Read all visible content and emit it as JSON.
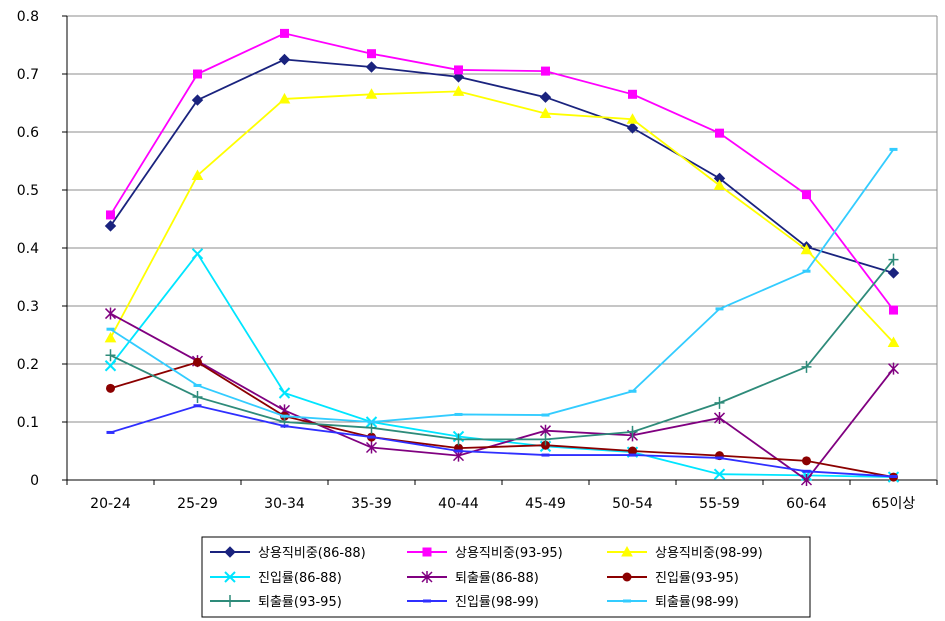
{
  "chart_data": {
    "type": "line",
    "title": "",
    "xlabel": "",
    "ylabel": "",
    "ylim": [
      0,
      0.8
    ],
    "yticks": [
      "0",
      "0.1",
      "0.2",
      "0.3",
      "0.4",
      "0.5",
      "0.6",
      "0.7",
      "0.8"
    ],
    "categories": [
      "20-24",
      "25-29",
      "30-34",
      "35-39",
      "40-44",
      "45-49",
      "50-54",
      "55-59",
      "60-64",
      "65이상"
    ],
    "grid": "horizontal",
    "legend_position": "bottom",
    "series": [
      {
        "name": "상용직비중(86-88)",
        "color": "#1a237e",
        "marker": "diamond",
        "values": [
          0.438,
          0.655,
          0.725,
          0.712,
          0.695,
          0.66,
          0.607,
          0.52,
          0.402,
          0.357
        ]
      },
      {
        "name": "상용직비중(93-95)",
        "color": "#ff00ff",
        "marker": "square",
        "values": [
          0.457,
          0.7,
          0.77,
          0.735,
          0.707,
          0.705,
          0.665,
          0.598,
          0.492,
          0.293
        ]
      },
      {
        "name": "상용직비중(98-99)",
        "color": "#ffff00",
        "marker": "triangle",
        "values": [
          0.245,
          0.525,
          0.657,
          0.665,
          0.67,
          0.632,
          0.622,
          0.508,
          0.397,
          0.237
        ]
      },
      {
        "name": "진입률(86-88)",
        "color": "#00e5ff",
        "marker": "x",
        "values": [
          0.197,
          0.39,
          0.15,
          0.1,
          0.075,
          0.058,
          0.048,
          0.01,
          0.008,
          0.005
        ]
      },
      {
        "name": "퇴출률(86-88)",
        "color": "#800080",
        "marker": "asterisk",
        "values": [
          0.287,
          0.205,
          0.12,
          0.056,
          0.042,
          0.085,
          0.077,
          0.107,
          0.0,
          0.192
        ]
      },
      {
        "name": "진입률(93-95)",
        "color": "#8b0000",
        "marker": "circle",
        "values": [
          0.158,
          0.203,
          0.11,
          0.074,
          0.055,
          0.06,
          0.05,
          0.042,
          0.033,
          0.005
        ]
      },
      {
        "name": "퇴출률(93-95)",
        "color": "#2e8b7a",
        "marker": "plus",
        "values": [
          0.215,
          0.143,
          0.1,
          0.09,
          0.07,
          0.07,
          0.083,
          0.133,
          0.195,
          0.38
        ]
      },
      {
        "name": "진입률(98-99)",
        "color": "#2f2fff",
        "marker": "dash",
        "values": [
          0.082,
          0.128,
          0.093,
          0.074,
          0.05,
          0.043,
          0.043,
          0.038,
          0.015,
          0.006
        ]
      },
      {
        "name": "퇴출률(98-99)",
        "color": "#33ccff",
        "marker": "dash",
        "values": [
          0.26,
          0.163,
          0.11,
          0.1,
          0.113,
          0.112,
          0.153,
          0.295,
          0.36,
          0.57
        ]
      }
    ]
  }
}
